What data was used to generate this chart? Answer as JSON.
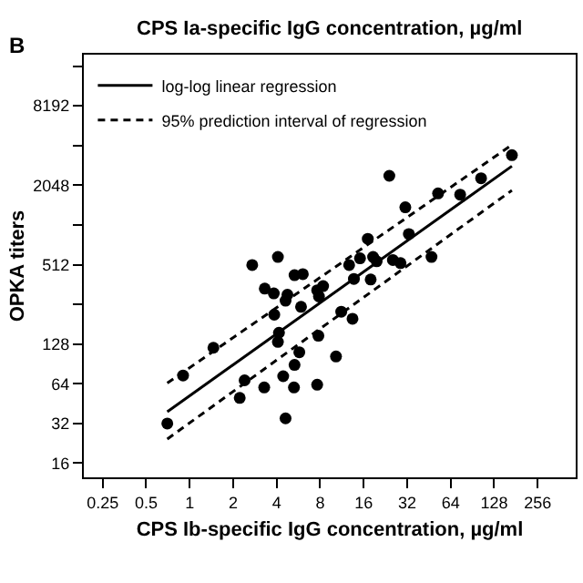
{
  "chart_data": {
    "type": "scatter",
    "xlabel": "CPS Ib-specific IgG concentration, µg/ml",
    "ylabel": "OPKA titers",
    "annotations": [
      "CPS Ia-specific IgG concentration, µg/ml",
      "B"
    ],
    "log": "xy",
    "grid": false,
    "legend": "top left",
    "xlim": [
      0.185,
      470
    ],
    "ylim": [
      12.5,
      20000
    ],
    "xticks": [
      0.25,
      0.5,
      1,
      2,
      4,
      8,
      16,
      32,
      64,
      128,
      256
    ],
    "yticks": [
      16,
      32,
      64,
      128,
      {
        "value": 256,
        "label": null
      },
      512,
      {
        "value": 1024,
        "label": null
      },
      2048,
      {
        "value": 4096,
        "label": null
      },
      8192,
      {
        "value": 16384,
        "label": null
      }
    ],
    "series": [
      {
        "marker": "circle",
        "color": "#000000",
        "x": [
          0.7,
          0.9,
          1.46,
          2.22,
          2.4,
          2.71,
          3.28,
          3.31,
          3.82,
          3.85,
          4.08,
          4.08,
          4.15,
          4.44,
          4.61,
          4.61,
          4.75,
          5.27,
          5.32,
          5.32,
          5.74,
          5.9,
          6.07,
          7.63,
          7.78,
          7.63,
          7.85,
          8.39,
          10.3,
          11.2,
          12.7,
          13.4,
          13.7,
          15.1,
          17.1,
          17.9,
          18.6,
          19.7,
          24.1,
          25.5,
          28.8,
          31.1,
          32.9,
          47.2,
          52.4,
          74.5,
          104,
          170
        ],
        "values": [
          32,
          74,
          120,
          50,
          68,
          509,
          60,
          337,
          310,
          214,
          585,
          133,
          156,
          73,
          35,
          273,
          303,
          60,
          426,
          89,
          111,
          245,
          434,
          327,
          148,
          63,
          294,
          352,
          103,
          225,
          509,
          199,
          399,
          572,
          803,
          395,
          585,
          543,
          2414,
          555,
          526,
          1392,
          874,
          585,
          1776,
          1738,
          2314,
          3459
        ]
      },
      {
        "type": "line",
        "name": "log-log linear regression",
        "color": "#000000",
        "line_style": "solid",
        "x": [
          0.7,
          170
        ],
        "values": [
          39.3,
          2858
        ]
      },
      {
        "type": "line",
        "name": "95% prediction interval of regression",
        "color": "#000000",
        "line_style": "dashed",
        "x": [
          0.7,
          170
        ],
        "values": [
          64.7,
          4139
        ]
      },
      {
        "type": "line",
        "color": "#000000",
        "line_style": "dashed",
        "x": [
          0.7,
          170
        ],
        "values": [
          24.4,
          1872
        ]
      }
    ]
  }
}
